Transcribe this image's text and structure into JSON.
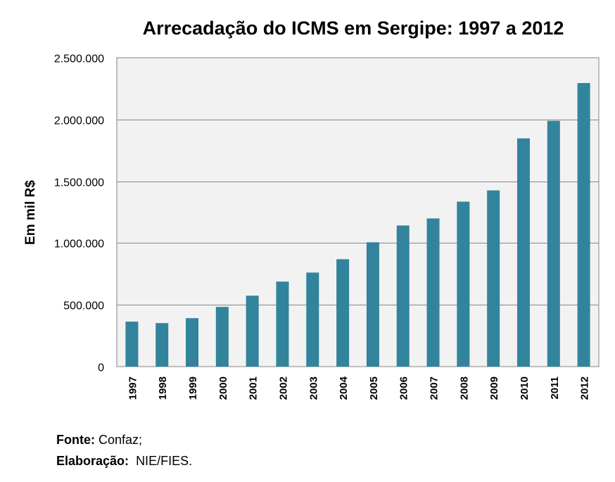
{
  "chart_data": {
    "type": "bar",
    "title": "Arrecadação do ICMS em Sergipe: 1997 a 2012",
    "xlabel": "",
    "ylabel": "Em mil R$",
    "categories": [
      "1997",
      "1998",
      "1999",
      "2000",
      "2001",
      "2002",
      "2003",
      "2004",
      "2005",
      "2006",
      "2007",
      "2008",
      "2009",
      "2010",
      "2011",
      "2012"
    ],
    "values": [
      364000,
      352000,
      392000,
      483000,
      574000,
      688000,
      761000,
      869000,
      1006000,
      1142000,
      1199000,
      1335000,
      1426000,
      1847000,
      1989000,
      2295000
    ],
    "ylim": [
      0,
      2500000
    ],
    "yticks": [
      0,
      500000,
      1000000,
      1500000,
      2000000,
      2500000
    ],
    "ytick_labels": [
      "0",
      "500.000",
      "1.000.000",
      "1.500.000",
      "2.000.000",
      "2.500.000"
    ],
    "grid": true,
    "legend": "none",
    "colors": {
      "bar": "#31849B",
      "plot_background": "#F2F2F2",
      "gridline": "#868686"
    }
  },
  "footer": {
    "source_label": "Fonte:",
    "source_value": "Confaz;",
    "credit_label": "Elaboração:",
    "credit_value": "NIE/FIES."
  }
}
